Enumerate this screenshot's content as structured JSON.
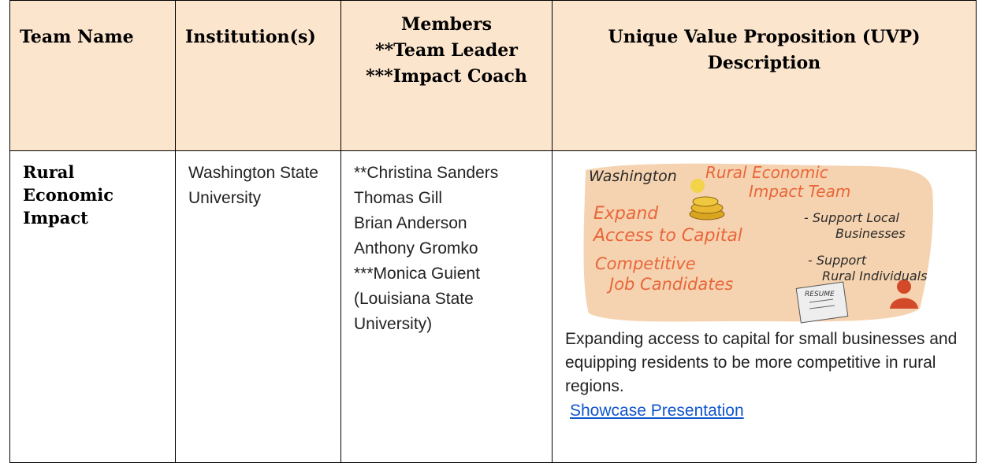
{
  "table": {
    "header": {
      "team": "Team Name",
      "institution": "Institution(s)",
      "members": "Members",
      "members_notes": [
        "**Team Leader",
        "***Impact Coach"
      ],
      "uvp": "Unique Value Proposition (UVP) Description"
    },
    "rows": [
      {
        "team": "Rural Economic Impact",
        "institution": "Washington State University",
        "members": [
          "**Christina Sanders",
          "Thomas Gill",
          "Brian Anderson",
          "Anthony Gromko",
          "***Monica Guient",
          "(Louisiana State University)"
        ],
        "uvp": {
          "image_labels": [
            "Washington",
            "Rural Economic",
            "Impact Team",
            "Expand",
            "Access to Capital",
            "- Support Local",
            "Businesses",
            "Competitive",
            "Job Candidates",
            "- Support",
            "Rural Individuals",
            "RESUME"
          ],
          "description": "Expanding access to capital for small businesses and equipping residents to be more competitive in rural regions.",
          "link": "Showcase Presentation"
        }
      }
    ]
  }
}
